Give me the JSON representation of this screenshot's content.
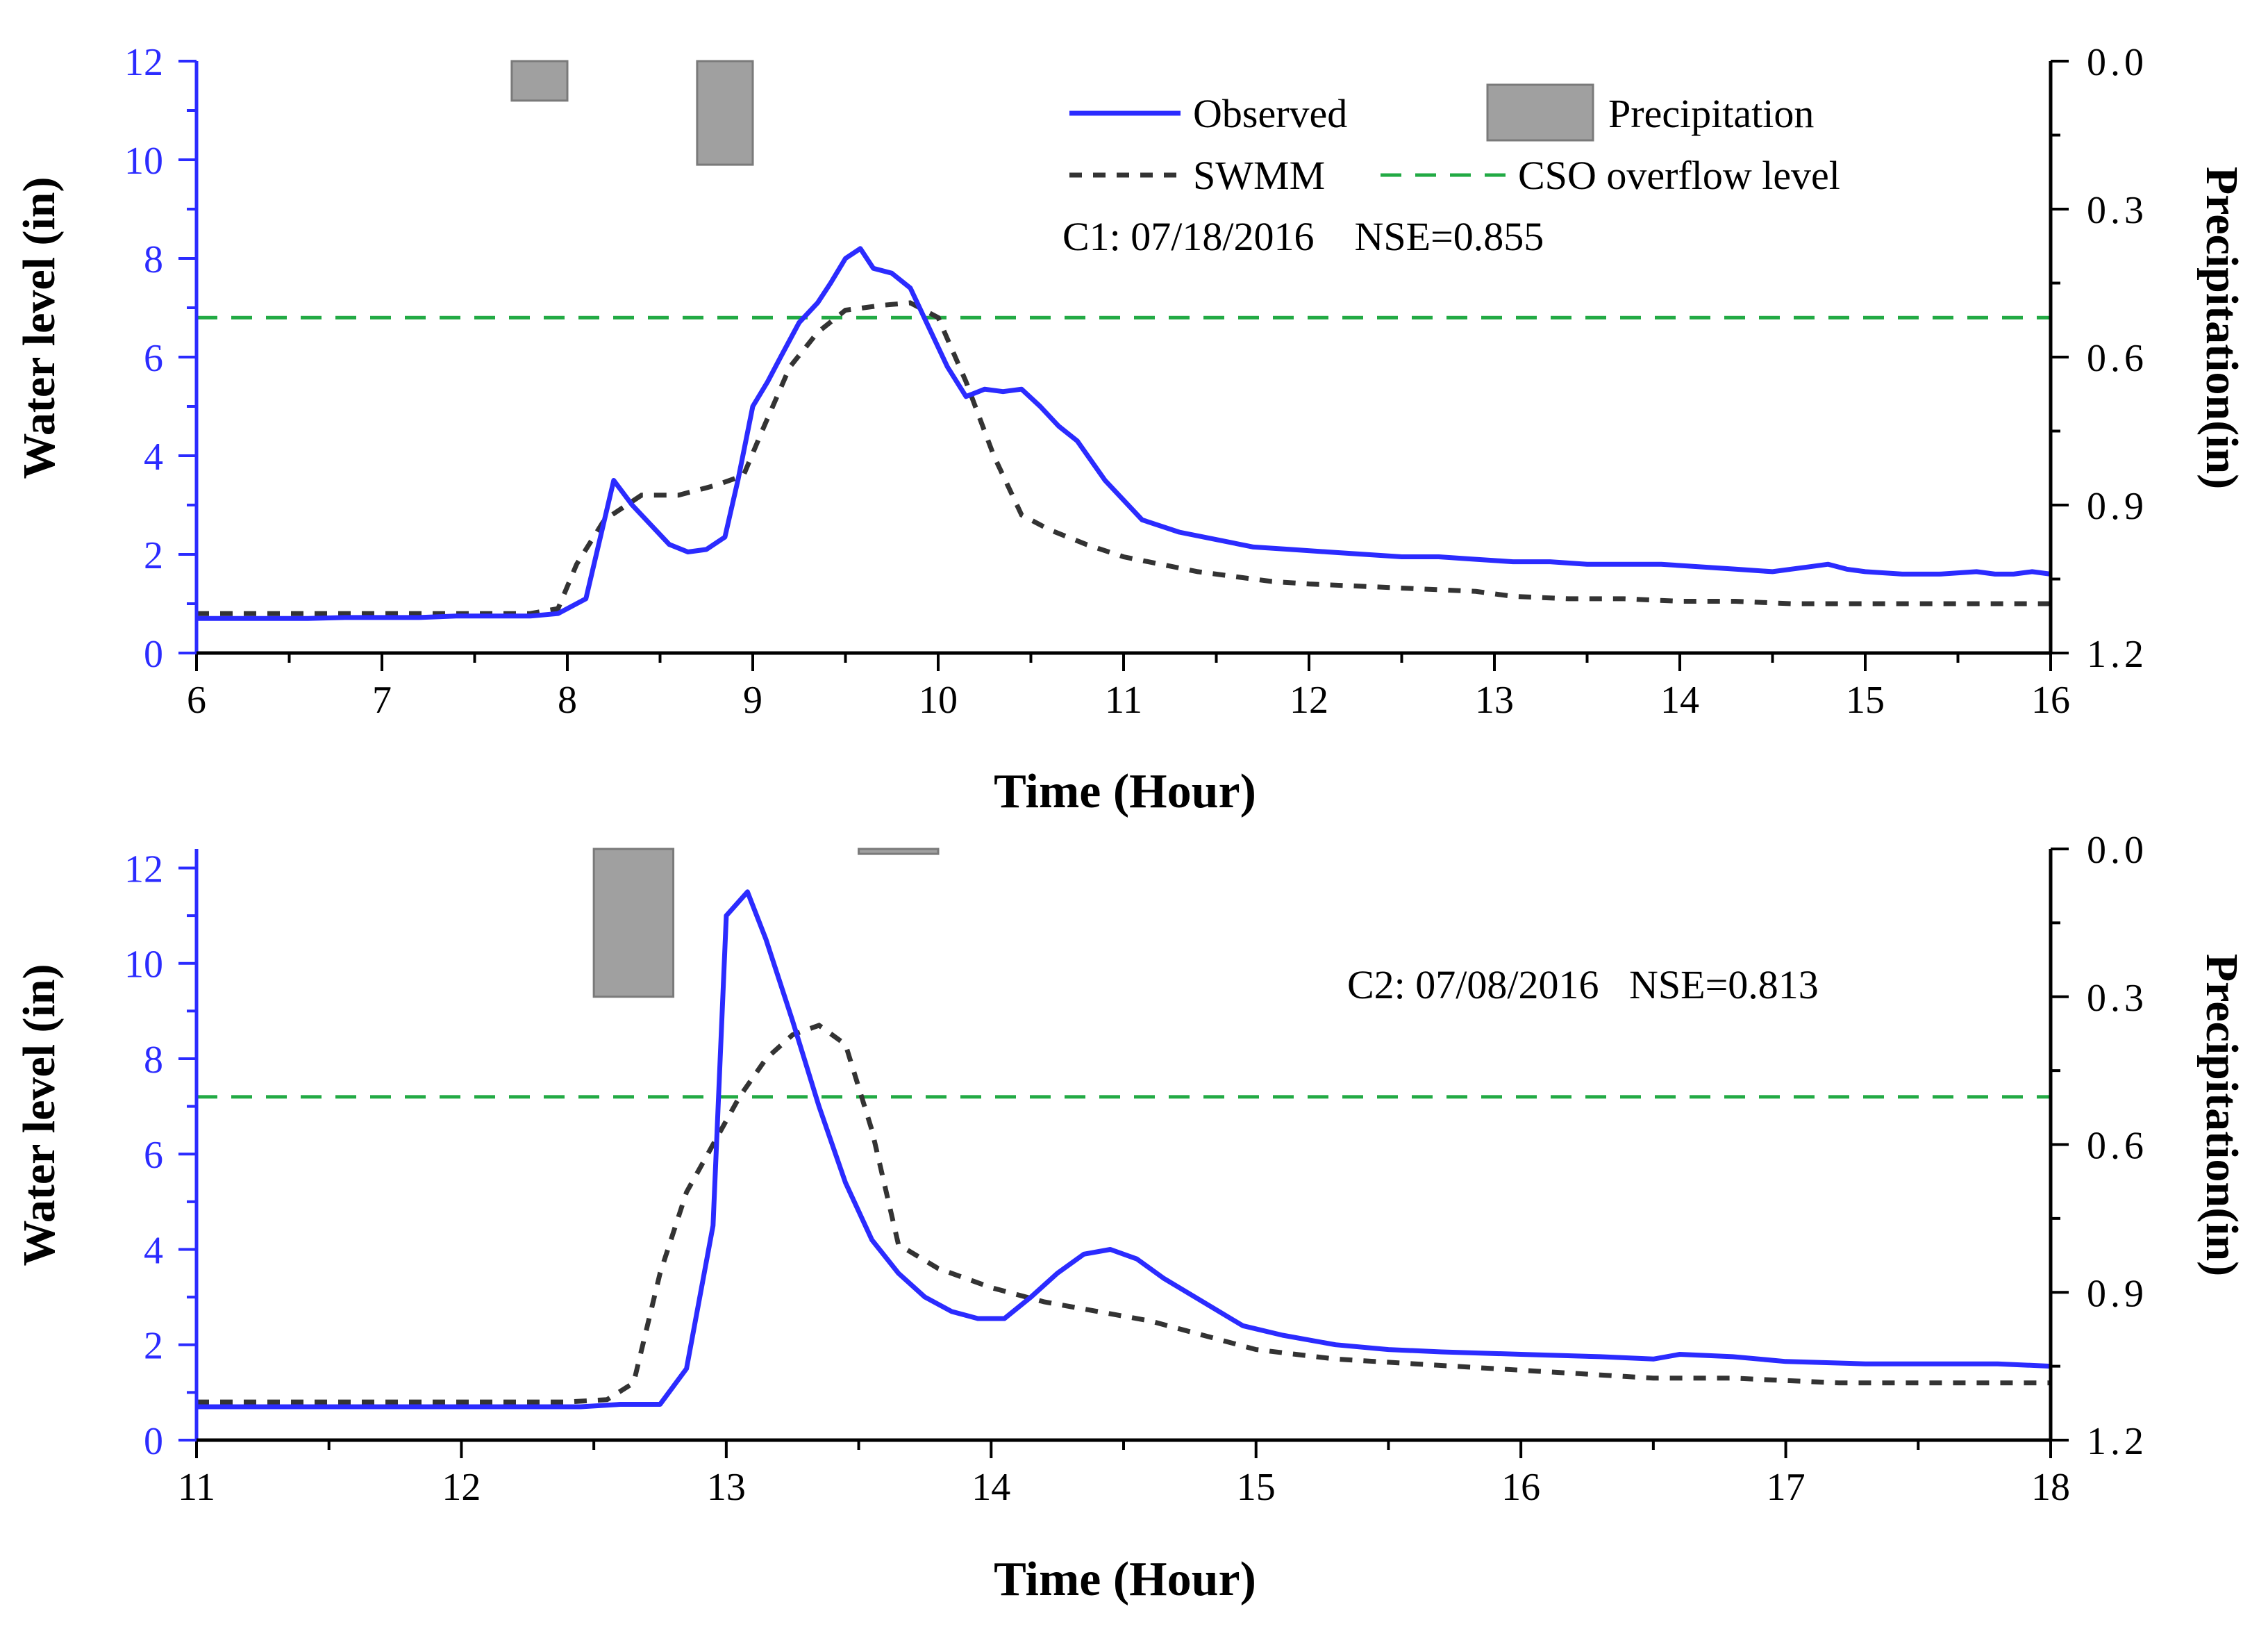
{
  "colors": {
    "observed": "#2b2bff",
    "swmm": "#333333",
    "cso": "#22aa44",
    "precip_fill": "#a0a0a0",
    "precip_stroke": "#7a7a7a",
    "left_axis": "#2b2bff"
  },
  "legend": {
    "observed": "Observed",
    "swmm": "SWMM",
    "precipitation": "Precipitation",
    "cso": "CSO overflow level"
  },
  "chart_data": [
    {
      "type": "line",
      "panel": "C1",
      "annotation": "C1: 07/18/2016    NSE=0.855",
      "xlabel": "Time (Hour)",
      "ylabel": "Water level (in)",
      "y2label": "Precipitation(in)",
      "xlim": [
        6,
        16
      ],
      "ylim": [
        0,
        12
      ],
      "y2lim": [
        0.0,
        1.2
      ],
      "y2_inverted": true,
      "x_ticks": [
        "6",
        "7",
        "8",
        "9",
        "10",
        "11",
        "12",
        "13",
        "14",
        "15",
        "16"
      ],
      "y_ticks": [
        "0",
        "2",
        "4",
        "6",
        "8",
        "10",
        "12"
      ],
      "y2_ticks": [
        "0.0",
        "0.3",
        "0.6",
        "0.9",
        "1.2"
      ],
      "cso_level": 6.8,
      "precipitation": [
        {
          "x0": 7.7,
          "x1": 8.0,
          "value": 0.08
        },
        {
          "x0": 8.7,
          "x1": 9.0,
          "value": 0.21
        }
      ],
      "series": [
        {
          "name": "Observed",
          "x": [
            6.0,
            6.2,
            6.4,
            6.6,
            6.8,
            7.0,
            7.2,
            7.4,
            7.6,
            7.8,
            7.95,
            8.1,
            8.25,
            8.35,
            8.45,
            8.55,
            8.65,
            8.75,
            8.85,
            8.92,
            9.0,
            9.08,
            9.15,
            9.25,
            9.35,
            9.42,
            9.5,
            9.58,
            9.65,
            9.75,
            9.85,
            9.95,
            10.05,
            10.15,
            10.25,
            10.35,
            10.45,
            10.55,
            10.65,
            10.75,
            10.9,
            11.1,
            11.3,
            11.5,
            11.7,
            11.9,
            12.1,
            12.3,
            12.5,
            12.7,
            12.9,
            13.1,
            13.3,
            13.5,
            13.7,
            13.9,
            14.1,
            14.3,
            14.5,
            14.6,
            14.7,
            14.8,
            14.9,
            15.0,
            15.2,
            15.4,
            15.6,
            15.7,
            15.8,
            15.9,
            16.0
          ],
          "y": [
            0.7,
            0.7,
            0.7,
            0.7,
            0.72,
            0.72,
            0.72,
            0.75,
            0.75,
            0.75,
            0.8,
            1.1,
            3.5,
            3.0,
            2.6,
            2.2,
            2.05,
            2.1,
            2.35,
            3.5,
            5.0,
            5.5,
            6.0,
            6.7,
            7.1,
            7.5,
            8.0,
            8.2,
            7.8,
            7.7,
            7.4,
            6.6,
            5.8,
            5.2,
            5.35,
            5.3,
            5.35,
            5.0,
            4.6,
            4.3,
            3.5,
            2.7,
            2.45,
            2.3,
            2.15,
            2.1,
            2.05,
            2.0,
            1.95,
            1.95,
            1.9,
            1.85,
            1.85,
            1.8,
            1.8,
            1.8,
            1.75,
            1.7,
            1.65,
            1.7,
            1.75,
            1.8,
            1.7,
            1.65,
            1.6,
            1.6,
            1.65,
            1.6,
            1.6,
            1.65,
            1.6
          ]
        },
        {
          "name": "SWMM",
          "x": [
            6.0,
            6.5,
            7.0,
            7.5,
            7.8,
            7.95,
            8.05,
            8.2,
            8.4,
            8.6,
            8.8,
            8.95,
            9.05,
            9.2,
            9.35,
            9.5,
            9.7,
            9.85,
            10.0,
            10.15,
            10.3,
            10.45,
            10.6,
            10.8,
            11.0,
            11.2,
            11.4,
            11.6,
            11.8,
            12.0,
            12.3,
            12.6,
            12.9,
            13.1,
            13.4,
            13.7,
            14.0,
            14.3,
            14.6,
            15.0,
            15.5,
            16.0
          ],
          "y": [
            0.8,
            0.8,
            0.8,
            0.8,
            0.8,
            0.9,
            1.8,
            2.7,
            3.2,
            3.2,
            3.4,
            3.6,
            4.5,
            5.8,
            6.5,
            6.95,
            7.05,
            7.1,
            6.8,
            5.5,
            4.0,
            2.8,
            2.5,
            2.2,
            1.95,
            1.8,
            1.65,
            1.55,
            1.45,
            1.4,
            1.35,
            1.3,
            1.25,
            1.15,
            1.1,
            1.1,
            1.05,
            1.05,
            1.0,
            1.0,
            1.0,
            1.0
          ]
        }
      ]
    },
    {
      "type": "line",
      "panel": "C2",
      "annotation": "C2: 07/08/2016   NSE=0.813",
      "xlabel": "Time (Hour)",
      "ylabel": "Water level (in)",
      "y2label": "Precipitation(in)",
      "xlim": [
        11,
        18
      ],
      "ylim": [
        0,
        12.4
      ],
      "y2lim": [
        0.0,
        1.2
      ],
      "y2_inverted": true,
      "x_ticks": [
        "11",
        "12",
        "13",
        "14",
        "15",
        "16",
        "17",
        "18"
      ],
      "y_ticks": [
        "0",
        "2",
        "4",
        "6",
        "8",
        "10",
        "12"
      ],
      "y2_ticks": [
        "0.0",
        "0.3",
        "0.6",
        "0.9",
        "1.2"
      ],
      "cso_level": 7.2,
      "precipitation": [
        {
          "x0": 12.5,
          "x1": 12.8,
          "value": 0.3
        },
        {
          "x0": 13.5,
          "x1": 13.8,
          "value": 0.01
        }
      ],
      "series": [
        {
          "name": "Observed",
          "x": [
            11.0,
            11.3,
            11.6,
            11.9,
            12.2,
            12.45,
            12.6,
            12.75,
            12.85,
            12.95,
            13.0,
            13.08,
            13.15,
            13.25,
            13.35,
            13.45,
            13.55,
            13.65,
            13.75,
            13.85,
            13.95,
            14.05,
            14.15,
            14.25,
            14.35,
            14.45,
            14.55,
            14.65,
            14.8,
            14.95,
            15.1,
            15.3,
            15.5,
            15.7,
            16.0,
            16.3,
            16.5,
            16.6,
            16.8,
            17.0,
            17.3,
            17.5,
            17.8,
            18.0
          ],
          "y": [
            0.7,
            0.7,
            0.7,
            0.7,
            0.7,
            0.7,
            0.75,
            0.75,
            1.5,
            4.5,
            11.0,
            11.5,
            10.5,
            8.8,
            7.0,
            5.4,
            4.2,
            3.5,
            3.0,
            2.7,
            2.55,
            2.55,
            3.0,
            3.5,
            3.9,
            4.0,
            3.8,
            3.4,
            2.9,
            2.4,
            2.2,
            2.0,
            1.9,
            1.85,
            1.8,
            1.75,
            1.7,
            1.8,
            1.75,
            1.65,
            1.6,
            1.6,
            1.6,
            1.55
          ]
        },
        {
          "name": "SWMM",
          "x": [
            11.0,
            11.5,
            12.0,
            12.4,
            12.55,
            12.65,
            12.75,
            12.85,
            12.95,
            13.05,
            13.15,
            13.25,
            13.35,
            13.45,
            13.55,
            13.65,
            13.8,
            14.0,
            14.2,
            14.4,
            14.6,
            14.8,
            15.0,
            15.3,
            15.6,
            15.9,
            16.2,
            16.5,
            16.8,
            17.2,
            17.6,
            18.0
          ],
          "y": [
            0.8,
            0.8,
            0.8,
            0.8,
            0.85,
            1.2,
            3.5,
            5.2,
            6.2,
            7.2,
            8.0,
            8.5,
            8.7,
            8.3,
            6.5,
            4.1,
            3.6,
            3.2,
            2.9,
            2.7,
            2.5,
            2.2,
            1.9,
            1.7,
            1.6,
            1.5,
            1.4,
            1.3,
            1.3,
            1.2,
            1.2,
            1.2
          ]
        }
      ]
    }
  ]
}
